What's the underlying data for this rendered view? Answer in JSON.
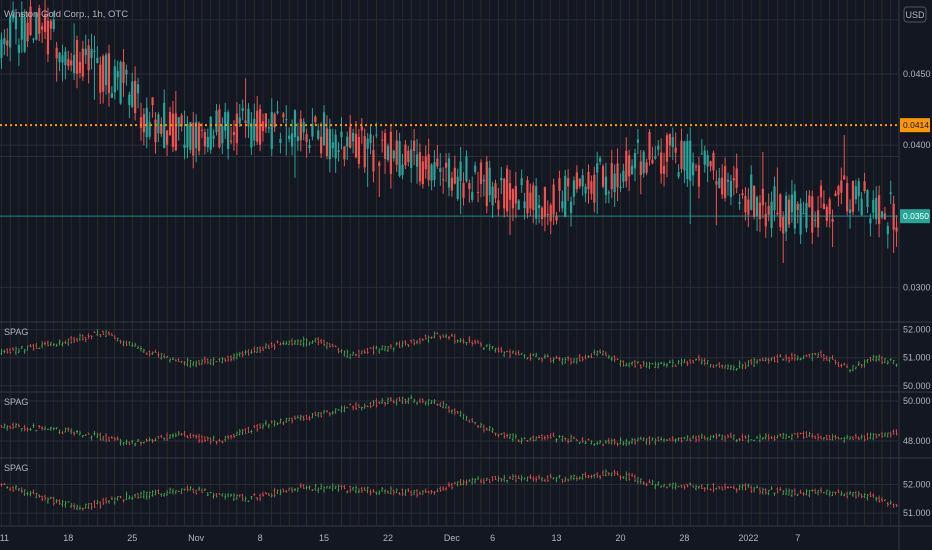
{
  "chart_data": {
    "type": "candlestick",
    "title": "Winston Gold Corp., 1h, OTC",
    "currency_label": "USD",
    "main": {
      "ylim": [
        0.0277,
        0.0502
      ],
      "y_ticks": [
        0.03,
        0.035,
        0.04,
        0.045
      ],
      "y_tick_labels": [
        "0.0300",
        "0.0350",
        "0.0400",
        "0.0450"
      ],
      "price_lines": [
        {
          "value": 0.0414,
          "label": "0.0414",
          "color": "#ff9800",
          "style": "dotted"
        },
        {
          "value": 0.035,
          "label": "0.0350",
          "color": "#26a69a",
          "style": "solid"
        }
      ],
      "path": [
        [
          0,
          0.0474
        ],
        [
          12,
          0.0485
        ],
        [
          25,
          0.0463
        ],
        [
          42,
          0.0443
        ],
        [
          50,
          0.042
        ],
        [
          65,
          0.0405
        ],
        [
          76,
          0.0412
        ],
        [
          88,
          0.0412
        ],
        [
          100,
          0.0409
        ],
        [
          110,
          0.0408
        ],
        [
          125,
          0.0398
        ],
        [
          140,
          0.0392
        ],
        [
          153,
          0.0379
        ],
        [
          164,
          0.0375
        ],
        [
          176,
          0.0366
        ],
        [
          188,
          0.036
        ],
        [
          200,
          0.037
        ],
        [
          210,
          0.038
        ],
        [
          221,
          0.0395
        ],
        [
          232,
          0.0392
        ],
        [
          244,
          0.0382
        ],
        [
          256,
          0.0368
        ],
        [
          264,
          0.0356
        ],
        [
          276,
          0.035
        ],
        [
          288,
          0.0364
        ],
        [
          300,
          0.0358
        ],
        [
          308,
          0.0349
        ]
      ]
    },
    "indicators": [
      {
        "name": "SPAG",
        "ylim": [
          49.85,
          52.2
        ],
        "y_ticks": [
          50,
          51,
          52
        ],
        "y_tick_labels": [
          "50.000",
          "51.000",
          "52.000"
        ],
        "path": [
          [
            0,
            51.2
          ],
          [
            20,
            51.5
          ],
          [
            35,
            51.9
          ],
          [
            50,
            51.2
          ],
          [
            65,
            50.8
          ],
          [
            80,
            51.0
          ],
          [
            95,
            51.5
          ],
          [
            110,
            51.6
          ],
          [
            120,
            51.1
          ],
          [
            135,
            51.4
          ],
          [
            150,
            51.8
          ],
          [
            160,
            51.6
          ],
          [
            172,
            51.2
          ],
          [
            184,
            51.0
          ],
          [
            196,
            50.9
          ],
          [
            206,
            51.2
          ],
          [
            214,
            50.8
          ],
          [
            228,
            50.7
          ],
          [
            240,
            50.9
          ],
          [
            250,
            50.6
          ],
          [
            262,
            50.9
          ],
          [
            272,
            51.0
          ],
          [
            282,
            51.1
          ],
          [
            292,
            50.6
          ],
          [
            300,
            51.0
          ],
          [
            308,
            50.8
          ]
        ]
      },
      {
        "name": "SPAG",
        "ylim": [
          47.25,
          50.35
        ],
        "y_ticks": [
          48,
          50
        ],
        "y_tick_labels": [
          "48.000",
          "50.000"
        ],
        "path": [
          [
            0,
            48.8
          ],
          [
            22,
            48.5
          ],
          [
            45,
            47.9
          ],
          [
            60,
            48.3
          ],
          [
            75,
            48.0
          ],
          [
            90,
            48.8
          ],
          [
            105,
            49.2
          ],
          [
            120,
            49.7
          ],
          [
            140,
            50.1
          ],
          [
            152,
            49.8
          ],
          [
            165,
            48.7
          ],
          [
            178,
            48.1
          ],
          [
            190,
            48.2
          ],
          [
            205,
            47.9
          ],
          [
            220,
            48.0
          ],
          [
            232,
            48.1
          ],
          [
            246,
            48.2
          ],
          [
            260,
            48.1
          ],
          [
            276,
            48.3
          ],
          [
            292,
            48.1
          ],
          [
            308,
            48.4
          ]
        ]
      },
      {
        "name": "SPAG",
        "ylim": [
          50.55,
          52.85
        ],
        "y_ticks": [
          51,
          52
        ],
        "y_tick_labels": [
          "51.000",
          "52.000"
        ],
        "path": [
          [
            0,
            52.0
          ],
          [
            15,
            51.5
          ],
          [
            28,
            51.2
          ],
          [
            45,
            51.6
          ],
          [
            65,
            51.8
          ],
          [
            85,
            51.5
          ],
          [
            105,
            51.9
          ],
          [
            125,
            51.8
          ],
          [
            145,
            51.7
          ],
          [
            160,
            52.1
          ],
          [
            175,
            52.2
          ],
          [
            195,
            52.2
          ],
          [
            210,
            52.4
          ],
          [
            225,
            52.0
          ],
          [
            240,
            51.9
          ],
          [
            255,
            51.9
          ],
          [
            270,
            51.7
          ],
          [
            285,
            51.7
          ],
          [
            298,
            51.6
          ],
          [
            308,
            51.3
          ]
        ]
      }
    ],
    "x_tick_labels": [
      "11",
      "18",
      "25",
      "Nov",
      "8",
      "15",
      "22",
      "Dec",
      "6",
      "13",
      "20",
      "28",
      "2022",
      "7"
    ],
    "x_tick_positions": [
      1,
      23,
      45,
      67,
      89,
      111,
      133,
      155,
      169,
      191,
      213,
      235,
      257,
      274
    ],
    "n_bars": 309
  }
}
